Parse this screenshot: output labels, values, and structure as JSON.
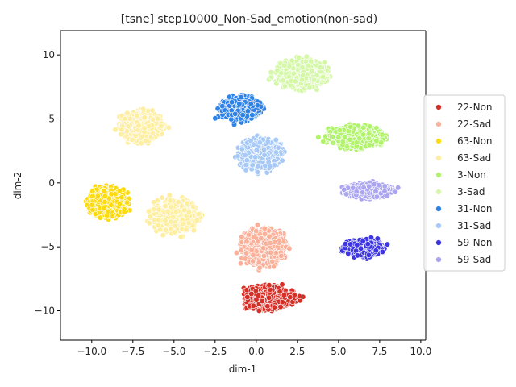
{
  "chart_data": {
    "type": "scatter",
    "title": "[tsne] step10000_Non-Sad_emotion(non-sad)",
    "xlabel": "dim-1",
    "ylabel": "dim-2",
    "xlim": [
      -11.9,
      10.3
    ],
    "ylim": [
      -12.3,
      11.9
    ],
    "xticks": [
      -10.0,
      -7.5,
      -5.0,
      -2.5,
      0.0,
      2.5,
      5.0,
      7.5,
      10.0
    ],
    "xtick_labels": [
      "−10.0",
      "−7.5",
      "−5.0",
      "−2.5",
      "0.0",
      "2.5",
      "5.0",
      "7.5",
      "10.0"
    ],
    "yticks": [
      -10,
      -5,
      0,
      5,
      10
    ],
    "ytick_labels": [
      "−10",
      "−5",
      "0",
      "5",
      "10"
    ],
    "grid": false,
    "legend_position": "center-right-outside",
    "series": [
      {
        "name": "22-Non",
        "color": "#d62f27",
        "center": [
          0.8,
          -9.0
        ],
        "spread": [
          1.7,
          1.0
        ],
        "points": 450
      },
      {
        "name": "22-Sad",
        "color": "#fbb09a",
        "center": [
          0.4,
          -5.0
        ],
        "spread": [
          1.5,
          1.6
        ],
        "points": 500
      },
      {
        "name": "63-Non",
        "color": "#fcdb10",
        "center": [
          -9.0,
          -1.5
        ],
        "spread": [
          1.3,
          1.3
        ],
        "points": 450
      },
      {
        "name": "63-Sad",
        "color": "#feeea2",
        "center": [
          -5.0,
          -2.6
        ],
        "spread": [
          1.6,
          1.4
        ],
        "points": 450
      },
      {
        "name": "63-Sad",
        "color": "#feeea2",
        "center": [
          -7.0,
          4.4
        ],
        "spread": [
          1.4,
          1.3
        ],
        "points": 450
      },
      {
        "name": "3-Non",
        "color": "#b1f36d",
        "center": [
          6.0,
          3.6
        ],
        "spread": [
          1.9,
          0.9
        ],
        "points": 450
      },
      {
        "name": "3-Sad",
        "color": "#d4f8a8",
        "center": [
          2.8,
          8.5
        ],
        "spread": [
          1.7,
          1.2
        ],
        "points": 450
      },
      {
        "name": "31-Non",
        "color": "#2f82e6",
        "center": [
          -1.0,
          5.8
        ],
        "spread": [
          1.3,
          1.0
        ],
        "points": 400
      },
      {
        "name": "31-Sad",
        "color": "#a7c9f7",
        "center": [
          0.3,
          2.2
        ],
        "spread": [
          1.4,
          1.3
        ],
        "points": 450
      },
      {
        "name": "59-Non",
        "color": "#3d36e1",
        "center": [
          6.5,
          -5.1
        ],
        "spread": [
          1.3,
          0.7
        ],
        "points": 400
      },
      {
        "name": "59-Sad",
        "color": "#aca6f2",
        "center": [
          6.8,
          -0.6
        ],
        "spread": [
          1.6,
          0.6
        ],
        "points": 400
      }
    ],
    "legend": [
      {
        "label": "22-Non",
        "color": "#d62f27"
      },
      {
        "label": "22-Sad",
        "color": "#fbb09a"
      },
      {
        "label": "63-Non",
        "color": "#fcdb10"
      },
      {
        "label": "63-Sad",
        "color": "#feeea2"
      },
      {
        "label": "3-Non",
        "color": "#b1f36d"
      },
      {
        "label": "3-Sad",
        "color": "#d4f8a8"
      },
      {
        "label": "31-Non",
        "color": "#2f82e6"
      },
      {
        "label": "31-Sad",
        "color": "#a7c9f7"
      },
      {
        "label": "59-Non",
        "color": "#3d36e1"
      },
      {
        "label": "59-Sad",
        "color": "#aca6f2"
      }
    ]
  }
}
